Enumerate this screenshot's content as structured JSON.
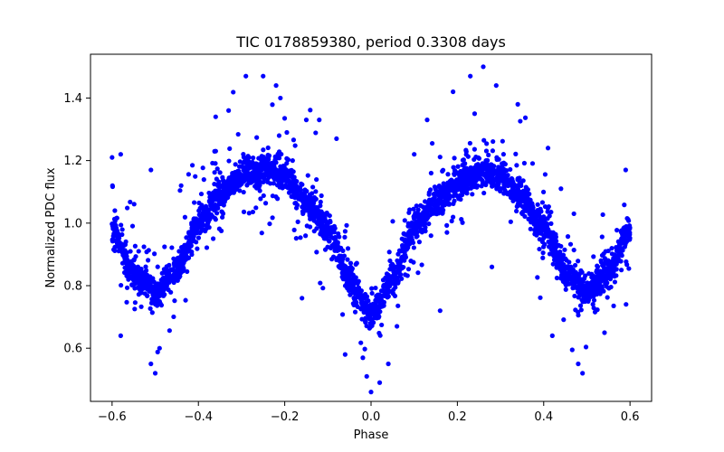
{
  "chart_data": {
    "type": "scatter",
    "title": "TIC 0178859380, period 0.3308 days",
    "xlabel": "Phase",
    "ylabel": "Normalized PDC flux",
    "xlim": [
      -0.65,
      0.65
    ],
    "ylim": [
      0.43,
      1.54
    ],
    "xticks": [
      -0.6,
      -0.4,
      -0.2,
      0.0,
      0.2,
      0.4,
      0.6
    ],
    "xtick_labels": [
      "−0.6",
      "−0.4",
      "−0.2",
      "0.0",
      "0.2",
      "0.4",
      "0.6"
    ],
    "yticks": [
      0.6,
      0.8,
      1.0,
      1.2,
      1.4
    ],
    "ytick_labels": [
      "0.6",
      "0.8",
      "1.0",
      "1.2",
      "1.4"
    ],
    "grid": false,
    "marker_color": "#0000ff",
    "phase_range": [
      -0.6,
      0.6
    ],
    "light_curve_trend": [
      {
        "phase": -0.6,
        "flux": 0.98
      },
      {
        "phase": -0.55,
        "flux": 0.84
      },
      {
        "phase": -0.5,
        "flux": 0.78
      },
      {
        "phase": -0.45,
        "flux": 0.85
      },
      {
        "phase": -0.4,
        "flux": 1.0
      },
      {
        "phase": -0.35,
        "flux": 1.09
      },
      {
        "phase": -0.3,
        "flux": 1.15
      },
      {
        "phase": -0.25,
        "flux": 1.17
      },
      {
        "phase": -0.2,
        "flux": 1.15
      },
      {
        "phase": -0.15,
        "flux": 1.07
      },
      {
        "phase": -0.1,
        "flux": 0.98
      },
      {
        "phase": -0.05,
        "flux": 0.82
      },
      {
        "phase": 0.0,
        "flux": 0.71
      },
      {
        "phase": 0.05,
        "flux": 0.82
      },
      {
        "phase": 0.1,
        "flux": 0.98
      },
      {
        "phase": 0.15,
        "flux": 1.07
      },
      {
        "phase": 0.2,
        "flux": 1.13
      },
      {
        "phase": 0.25,
        "flux": 1.16
      },
      {
        "phase": 0.3,
        "flux": 1.15
      },
      {
        "phase": 0.35,
        "flux": 1.08
      },
      {
        "phase": 0.4,
        "flux": 0.99
      },
      {
        "phase": 0.45,
        "flux": 0.85
      },
      {
        "phase": 0.5,
        "flux": 0.78
      },
      {
        "phase": 0.55,
        "flux": 0.84
      },
      {
        "phase": 0.6,
        "flux": 0.98
      }
    ],
    "outlier_points": [
      {
        "x": -0.29,
        "y": 1.47
      },
      {
        "x": -0.25,
        "y": 1.47
      },
      {
        "x": -0.22,
        "y": 1.44
      },
      {
        "x": -0.33,
        "y": 1.36
      },
      {
        "x": -0.36,
        "y": 1.34
      },
      {
        "x": -0.21,
        "y": 1.4
      },
      {
        "x": -0.15,
        "y": 1.33
      },
      {
        "x": -0.12,
        "y": 1.33
      },
      {
        "x": -0.08,
        "y": 1.27
      },
      {
        "x": -0.58,
        "y": 1.22
      },
      {
        "x": -0.6,
        "y": 1.21
      },
      {
        "x": -0.51,
        "y": 1.17
      },
      {
        "x": -0.5,
        "y": 0.52
      },
      {
        "x": -0.51,
        "y": 0.55
      },
      {
        "x": -0.49,
        "y": 0.6
      },
      {
        "x": -0.58,
        "y": 0.64
      },
      {
        "x": 0.0,
        "y": 0.46
      },
      {
        "x": -0.01,
        "y": 0.51
      },
      {
        "x": 0.02,
        "y": 0.49
      },
      {
        "x": -0.06,
        "y": 0.58
      },
      {
        "x": 0.04,
        "y": 0.55
      },
      {
        "x": 0.26,
        "y": 1.5
      },
      {
        "x": 0.23,
        "y": 1.47
      },
      {
        "x": 0.19,
        "y": 1.42
      },
      {
        "x": 0.29,
        "y": 1.44
      },
      {
        "x": 0.24,
        "y": 1.35
      },
      {
        "x": 0.34,
        "y": 1.38
      },
      {
        "x": 0.13,
        "y": 1.33
      },
      {
        "x": 0.1,
        "y": 1.22
      },
      {
        "x": 0.41,
        "y": 1.24
      },
      {
        "x": 0.48,
        "y": 0.55
      },
      {
        "x": 0.49,
        "y": 0.52
      },
      {
        "x": 0.42,
        "y": 0.64
      },
      {
        "x": 0.59,
        "y": 1.17
      },
      {
        "x": 0.58,
        "y": 0.85
      },
      {
        "x": 0.44,
        "y": 1.11
      },
      {
        "x": -0.44,
        "y": 1.12
      },
      {
        "x": 0.06,
        "y": 0.67
      },
      {
        "x": 0.16,
        "y": 0.72
      },
      {
        "x": -0.16,
        "y": 0.76
      },
      {
        "x": 0.28,
        "y": 0.86
      },
      {
        "x": 0.47,
        "y": 1.03
      }
    ]
  }
}
